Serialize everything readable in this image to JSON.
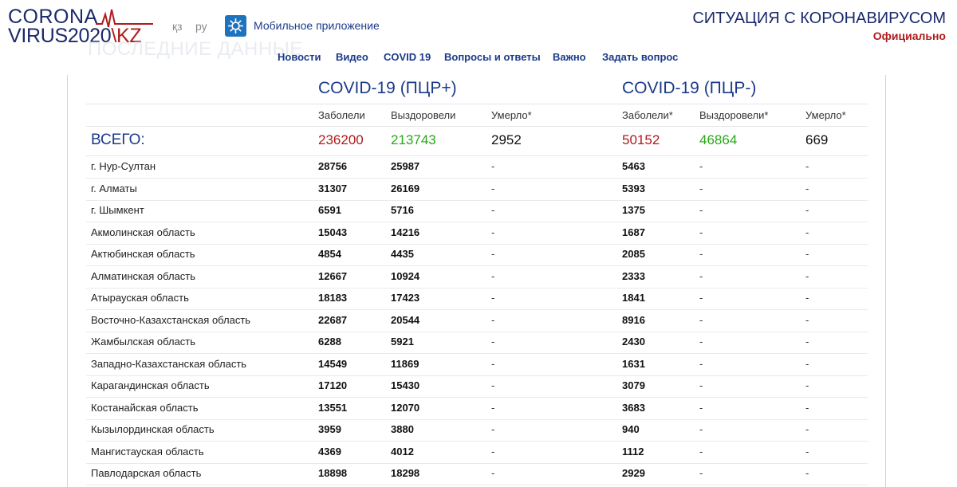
{
  "logo": {
    "line1": "CORONA",
    "line2a": "VIRUS2020",
    "line2b": "\\KZ"
  },
  "lang": {
    "kz": "қз",
    "ru": "ру"
  },
  "app": {
    "label": "Мобильное приложение"
  },
  "header": {
    "title": "СИТУАЦИЯ С КОРОНАВИРУСОМ",
    "subtitle": "Официально"
  },
  "ghost_heading": "ПОСЛЕДНИЕ ДАННЫЕ",
  "nav": [
    "Новости",
    "Видео",
    "COVID 19",
    "Вопросы и ответы",
    "Важно",
    "Задать вопрос"
  ],
  "pcr_pos": {
    "title": "COVID-19 (ПЦР+)",
    "cols": [
      "Заболели",
      "Выздоровели",
      "Умерло*"
    ],
    "totals": [
      "236200",
      "213743",
      "2952"
    ]
  },
  "pcr_neg": {
    "title": "COVID-19 (ПЦР-)",
    "cols": [
      "Заболели*",
      "Выздоровели*",
      "Умерло*"
    ],
    "totals": [
      "50152",
      "46864",
      "669"
    ]
  },
  "total_label": "ВСЕГО:",
  "rows": [
    {
      "name": "г. Нур-Султан",
      "v": [
        "28756",
        "25987",
        "-",
        "5463",
        "-",
        "-"
      ]
    },
    {
      "name": "г. Алматы",
      "v": [
        "31307",
        "26169",
        "-",
        "5393",
        "-",
        "-"
      ]
    },
    {
      "name": "г. Шымкент",
      "v": [
        "6591",
        "5716",
        "-",
        "1375",
        "-",
        "-"
      ]
    },
    {
      "name": "Акмолинская область",
      "v": [
        "15043",
        "14216",
        "-",
        "1687",
        "-",
        "-"
      ]
    },
    {
      "name": "Актюбинская область",
      "v": [
        "4854",
        "4435",
        "-",
        "2085",
        "-",
        "-"
      ]
    },
    {
      "name": "Алматинская область",
      "v": [
        "12667",
        "10924",
        "-",
        "2333",
        "-",
        "-"
      ]
    },
    {
      "name": "Атырауская область",
      "v": [
        "18183",
        "17423",
        "-",
        "1841",
        "-",
        "-"
      ]
    },
    {
      "name": "Восточно-Казахстанская область",
      "v": [
        "22687",
        "20544",
        "-",
        "8916",
        "-",
        "-"
      ]
    },
    {
      "name": "Жамбылская область",
      "v": [
        "6288",
        "5921",
        "-",
        "2430",
        "-",
        "-"
      ]
    },
    {
      "name": "Западно-Казахстанская область",
      "v": [
        "14549",
        "11869",
        "-",
        "1631",
        "-",
        "-"
      ]
    },
    {
      "name": "Карагандинская область",
      "v": [
        "17120",
        "15430",
        "-",
        "3079",
        "-",
        "-"
      ]
    },
    {
      "name": "Костанайская область",
      "v": [
        "13551",
        "12070",
        "-",
        "3683",
        "-",
        "-"
      ]
    },
    {
      "name": "Кызылординская область",
      "v": [
        "3959",
        "3880",
        "-",
        "940",
        "-",
        "-"
      ]
    },
    {
      "name": "Мангистауская область",
      "v": [
        "4369",
        "4012",
        "-",
        "1112",
        "-",
        "-"
      ]
    },
    {
      "name": "Павлодарская область",
      "v": [
        "18898",
        "18298",
        "-",
        "2929",
        "-",
        "-"
      ]
    }
  ]
}
